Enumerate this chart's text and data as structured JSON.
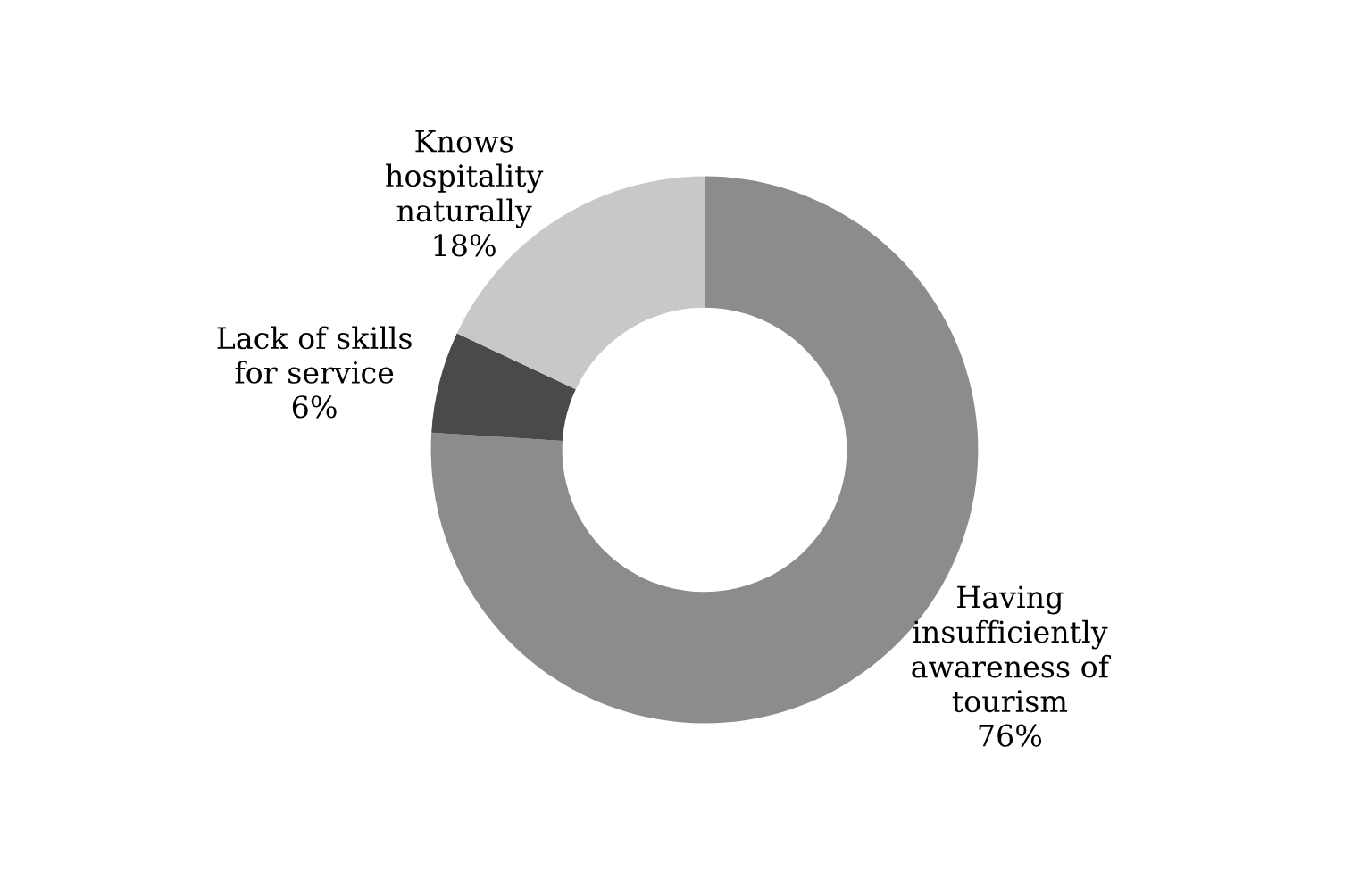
{
  "chart_data": {
    "type": "donut",
    "categories": [
      "Having\ninsufficiently\nawareness of\ntourism",
      "Lack of skills\nfor service",
      "Knows\nhospitality\nnaturally"
    ],
    "values": [
      76,
      6,
      18
    ],
    "colors": [
      "#8c8c8c",
      "#4a4a4a",
      "#c8c8c8"
    ],
    "value_labels": [
      "76%",
      "6%",
      "18%"
    ]
  }
}
